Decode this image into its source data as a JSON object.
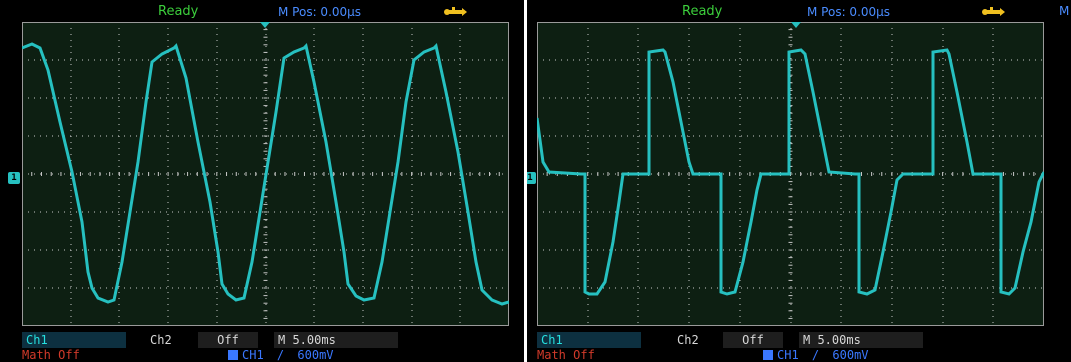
{
  "colors": {
    "trace": "#26c0c0",
    "grid_dot": "#c8c8c8",
    "status_green": "#3ccf3c",
    "header_blue": "#4a8cff",
    "math_red": "#d23a2a",
    "screen_bg": "#0d1f12"
  },
  "screens": [
    {
      "header": {
        "status": "Ready",
        "mpos": "M Pos: 0.00µs",
        "usb_icon": "usb-icon"
      },
      "bottom": {
        "ch1": "Ch1",
        "ch2": "Ch2",
        "ch2_state": "Off",
        "timebase": "M 5.00ms",
        "math": "Math Off",
        "trigger_source": "CH1",
        "trigger_slope": "/",
        "trigger_level": "600mV"
      },
      "waveform": "sine-like triangle, clipped peaks"
    },
    {
      "header": {
        "status": "Ready",
        "mpos": "M Pos: 0.00µs",
        "usb_icon": "usb-icon",
        "edge_letter": "M"
      },
      "bottom": {
        "ch1": "Ch1",
        "ch2": "Ch2",
        "ch2_state": "Off",
        "timebase": "M 5.00ms",
        "math": "Math Off",
        "trigger_source": "CH1",
        "trigger_slope": "/",
        "trigger_level": "600mV"
      },
      "waveform": "pulsed waveform with dead-time plateaus"
    }
  ]
}
